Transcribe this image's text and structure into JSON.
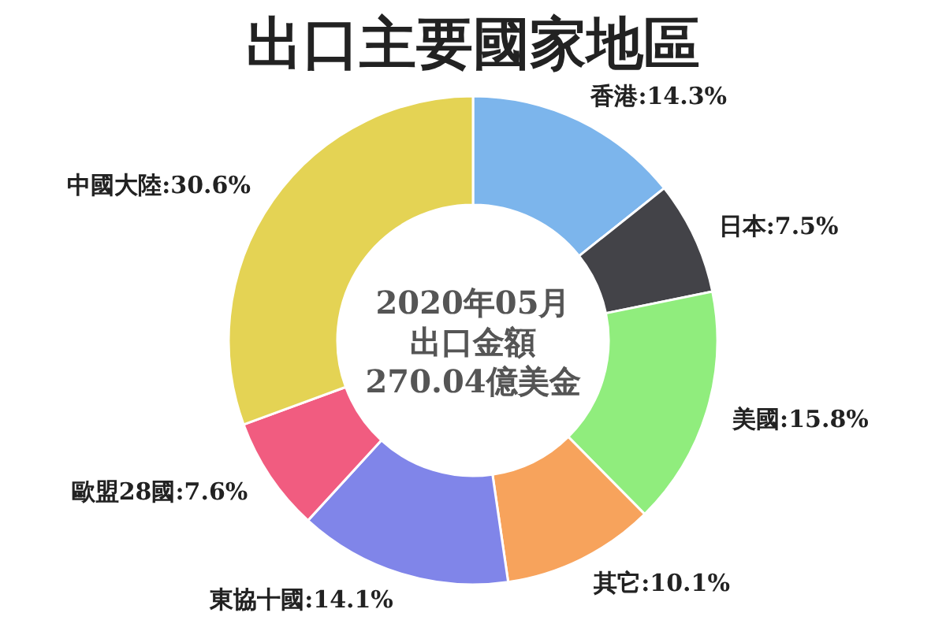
{
  "chart_data": {
    "type": "donut",
    "title": "出口主要國家地區",
    "categories": [
      "香港",
      "日本",
      "美國",
      "其它",
      "東協十國",
      "歐盟28國",
      "中國大陸"
    ],
    "values": [
      14.3,
      7.5,
      15.8,
      10.1,
      14.1,
      7.6,
      30.6
    ],
    "value_labels": [
      "14.3%",
      "7.5%",
      "15.8%",
      "10.1%",
      "14.1%",
      "7.6%",
      "30.6%"
    ],
    "colors": [
      "#7cb5ec",
      "#434348",
      "#90ed7d",
      "#f7a35c",
      "#8085e9",
      "#f15c80",
      "#e4d354"
    ],
    "annotations": [
      "2020年05月",
      "出口金額",
      "270.04億美金"
    ],
    "legend": false
  }
}
